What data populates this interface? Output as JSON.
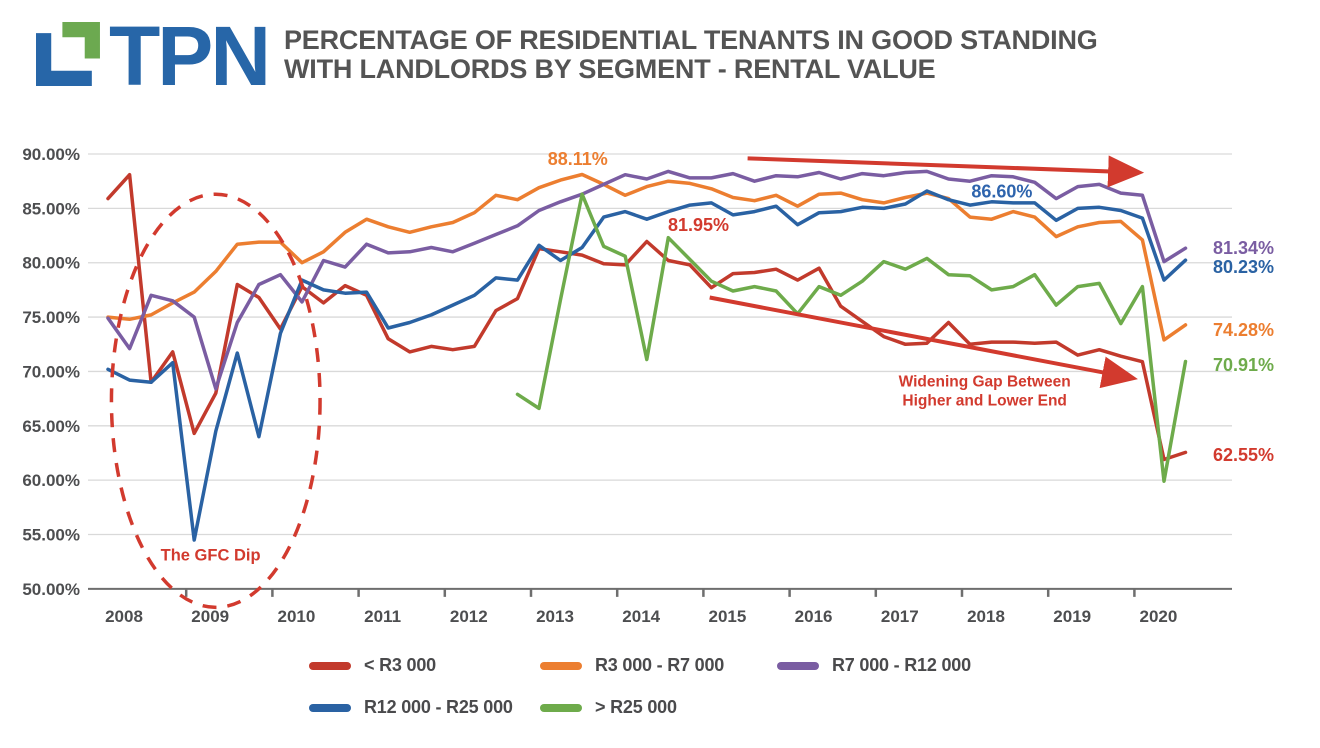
{
  "header": {
    "logo_text": "TPN",
    "title_line1": "PERCENTAGE OF RESIDENTIAL TENANTS IN GOOD STANDING",
    "title_line2": "WITH LANDLORDS BY SEGMENT - RENTAL VALUE"
  },
  "colors": {
    "logo_blue": "#2766A8",
    "logo_green": "#6CA950",
    "title_gray": "#545454",
    "axis_gray": "#4D4E50",
    "gridline": "#D9D9D9",
    "axis_line": "#6E6E6E",
    "annotation_red": "#D23A2E"
  },
  "chart_data": {
    "type": "line",
    "title": "Percentage of residential tenants in good standing with landlords by segment - rental value",
    "x_unit": "quarter",
    "x_start_year": 2008,
    "x_step_years": 0.25,
    "x_tick_labels": [
      "2008",
      "2009",
      "2010",
      "2011",
      "2012",
      "2013",
      "2014",
      "2015",
      "2016",
      "2017",
      "2018",
      "2019",
      "2020"
    ],
    "y_tick_labels": [
      "90.00%",
      "85.00%",
      "80.00%",
      "75.00%",
      "70.00%",
      "65.00%",
      "60.00%",
      "55.00%",
      "50.00%"
    ],
    "y_ticks": [
      90,
      85,
      80,
      75,
      70,
      65,
      60,
      55,
      50
    ],
    "ylim": [
      50,
      90
    ],
    "grid": true,
    "legend_position": "bottom",
    "series": [
      {
        "name": "< R3 000",
        "key": "lt-r3000",
        "color": "#C23A2C",
        "start_index": 0,
        "values": [
          85.9,
          88.1,
          69.0,
          71.8,
          64.3,
          68.0,
          78.0,
          76.8,
          73.9,
          77.8,
          76.3,
          77.9,
          77.0,
          73.0,
          71.8,
          72.3,
          72.0,
          72.3,
          75.6,
          76.7,
          81.3,
          81.0,
          80.7,
          79.9,
          79.8,
          81.95,
          80.2,
          79.8,
          77.7,
          79.0,
          79.1,
          79.4,
          78.4,
          79.5,
          76.0,
          74.6,
          73.2,
          72.5,
          72.6,
          74.5,
          72.5,
          72.7,
          72.7,
          72.6,
          72.7,
          71.5,
          72.0,
          71.4,
          70.9,
          61.9,
          62.55
        ]
      },
      {
        "name": "R3 000 - R7 000",
        "key": "r3000-r7000",
        "color": "#EC7E30",
        "start_index": 0,
        "values": [
          75.0,
          74.8,
          75.2,
          76.3,
          77.3,
          79.2,
          81.7,
          81.9,
          81.9,
          80.0,
          81.0,
          82.8,
          84.0,
          83.3,
          82.8,
          83.3,
          83.7,
          84.6,
          86.2,
          85.8,
          86.9,
          87.6,
          88.11,
          87.2,
          86.2,
          87.0,
          87.5,
          87.3,
          86.8,
          86.0,
          85.7,
          86.2,
          85.2,
          86.3,
          86.4,
          85.8,
          85.5,
          86.0,
          86.4,
          85.9,
          84.2,
          84.0,
          84.7,
          84.2,
          82.4,
          83.3,
          83.7,
          83.8,
          82.1,
          72.9,
          74.28
        ]
      },
      {
        "name": "R7 000 - R12 000",
        "key": "r7000-r12000",
        "color": "#7A5DA2",
        "start_index": 0,
        "values": [
          74.9,
          72.1,
          77.0,
          76.5,
          75.0,
          68.4,
          74.5,
          78.0,
          78.9,
          76.4,
          80.2,
          79.6,
          81.7,
          80.9,
          81.0,
          81.4,
          81.0,
          81.8,
          82.6,
          83.4,
          84.8,
          85.6,
          86.3,
          87.2,
          88.1,
          87.7,
          88.4,
          87.8,
          87.8,
          88.2,
          87.5,
          88.0,
          87.9,
          88.3,
          87.7,
          88.2,
          88.0,
          88.3,
          88.4,
          87.7,
          87.5,
          88.0,
          87.9,
          87.4,
          85.9,
          87.0,
          87.2,
          86.4,
          86.2,
          80.1,
          81.34
        ]
      },
      {
        "name": "R12 000 - R25 000",
        "key": "r12000-r25000",
        "color": "#2A62A3",
        "start_index": 0,
        "values": [
          70.2,
          69.2,
          69.0,
          70.8,
          54.5,
          64.5,
          71.7,
          64.0,
          73.5,
          78.4,
          77.5,
          77.2,
          77.3,
          74.0,
          74.5,
          75.2,
          76.1,
          77.0,
          78.6,
          78.4,
          81.6,
          80.2,
          81.4,
          84.2,
          84.7,
          84.0,
          84.7,
          85.3,
          85.5,
          84.4,
          84.7,
          85.2,
          83.5,
          84.6,
          84.7,
          85.1,
          85.0,
          85.4,
          86.6,
          85.8,
          85.3,
          85.6,
          85.5,
          85.5,
          83.9,
          85.0,
          85.1,
          84.8,
          84.1,
          78.4,
          80.23
        ]
      },
      {
        "name": "> R25 000",
        "key": "gt-r25000",
        "color": "#6EAB4B",
        "start_index": 19,
        "values": [
          67.9,
          66.6,
          76.6,
          86.3,
          81.5,
          80.6,
          71.1,
          82.3,
          80.3,
          78.3,
          77.4,
          77.8,
          77.4,
          75.3,
          77.8,
          77.0,
          78.3,
          80.1,
          79.4,
          80.4,
          78.9,
          78.8,
          77.5,
          77.8,
          78.9,
          76.1,
          77.8,
          78.1,
          74.4,
          77.8,
          59.9,
          70.91
        ]
      }
    ],
    "annotations": {
      "gfc_ellipse": {
        "cx_year": 2009.25,
        "cy_pct": 67.3,
        "rx_years": 1.21,
        "ry_pct": 19.0
      },
      "gfc_label": {
        "text": "The GFC Dip",
        "x_year": 2009.19,
        "y_pct": 52.6
      },
      "value_labels": [
        {
          "text": "88.11%",
          "series_key": "r3000-r7000",
          "color": "#EC7E30",
          "x_year": 2013.45,
          "y_pct": 89.0
        },
        {
          "text": "81.95%",
          "series_key": "lt-r3000",
          "color": "#D23A2E",
          "x_year": 2014.85,
          "y_pct": 82.9
        },
        {
          "text": "86.60%",
          "series_key": "r12000-r25000",
          "color": "#2E64AD",
          "x_year": 2018.37,
          "y_pct": 86.0
        }
      ],
      "end_labels": [
        {
          "text": "81.34%",
          "series_key": "r7000-r12000",
          "color": "#7A5DA2",
          "y_pct": 81.35
        },
        {
          "text": "80.23%",
          "series_key": "r12000-r25000",
          "color": "#2A62A3",
          "y_pct": 79.6
        },
        {
          "text": "74.28%",
          "series_key": "r3000-r7000",
          "color": "#EC7E30",
          "y_pct": 73.8
        },
        {
          "text": "70.91%",
          "series_key": "gt-r25000",
          "color": "#6EAB4B",
          "y_pct": 70.6
        },
        {
          "text": "62.55%",
          "series_key": "lt-r3000",
          "color": "#D23A2E",
          "y_pct": 62.3
        }
      ],
      "arrows": [
        {
          "x1_year": 2015.42,
          "y1_pct": 89.6,
          "x2_year": 2019.95,
          "y2_pct": 88.3
        },
        {
          "x1_year": 2014.98,
          "y1_pct": 76.8,
          "x2_year": 2019.88,
          "y2_pct": 69.4
        }
      ],
      "widening_gap_label": {
        "line1": "Widening Gap Between",
        "line2": "Higher and Lower End",
        "x_year": 2018.17,
        "y_pct": 68.6
      }
    }
  }
}
